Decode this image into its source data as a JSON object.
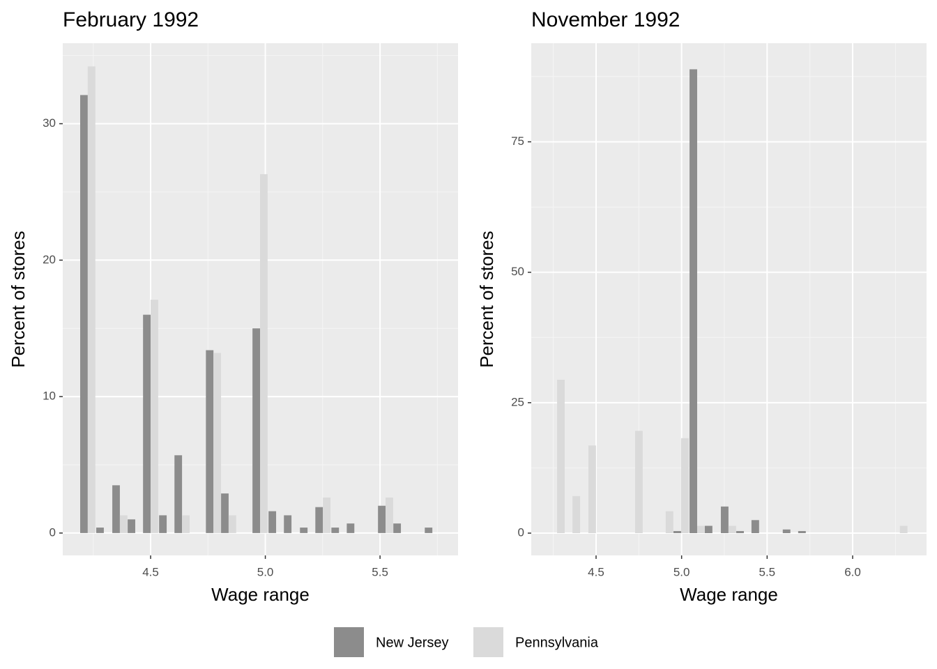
{
  "chart_data": [
    {
      "type": "bar",
      "title": "February 1992",
      "xlabel": "Wage range",
      "ylabel": "Percent of stores",
      "x": [
        4.226,
        4.296,
        4.366,
        4.433,
        4.5,
        4.57,
        4.637,
        4.774,
        4.84,
        4.977,
        5.047,
        5.114,
        5.184,
        5.251,
        5.321,
        5.388,
        5.524,
        5.591,
        5.728
      ],
      "series": [
        {
          "name": "New Jersey",
          "color": "#8c8c8c",
          "values": [
            32.1,
            0.4,
            3.5,
            1.0,
            16.0,
            1.3,
            5.7,
            13.4,
            2.9,
            15.0,
            1.6,
            1.3,
            0.4,
            1.9,
            0.4,
            0.7,
            2.0,
            0.7,
            0.4
          ]
        },
        {
          "name": "Pennsylvania",
          "color": "#dadada",
          "values": [
            34.2,
            0,
            1.3,
            0,
            17.1,
            0,
            1.3,
            13.2,
            1.3,
            26.3,
            0,
            0,
            0,
            2.6,
            0,
            0,
            2.6,
            0,
            0
          ]
        }
      ],
      "xlim": [
        4.117,
        5.84
      ],
      "xticks": [
        4.5,
        {
          "value": 5,
          "label": "5.0"
        },
        5.5
      ],
      "ylim": [
        -1.64,
        35.9
      ],
      "yticks": [
        0,
        10,
        20,
        30
      ],
      "grid": true
    },
    {
      "type": "bar",
      "title": "November 1992",
      "xlabel": "Wage range",
      "ylabel": "Percent of stores",
      "x": [
        4.272,
        4.362,
        4.455,
        4.728,
        4.907,
        4.997,
        5.091,
        5.18,
        5.274,
        5.364,
        5.453,
        5.636,
        5.726,
        6.276
      ],
      "series": [
        {
          "name": "New Jersey",
          "color": "#8c8c8c",
          "values": [
            0,
            0,
            0,
            0,
            0,
            0.4,
            88.9,
            1.4,
            5.1,
            0.4,
            2.5,
            0.7,
            0.4,
            0
          ]
        },
        {
          "name": "Pennsylvania",
          "color": "#dadada",
          "values": [
            29.4,
            7.1,
            16.8,
            19.6,
            4.2,
            18.2,
            1.4,
            0,
            1.4,
            0,
            0,
            0,
            0,
            1.4
          ]
        }
      ],
      "xlim": [
        4.121,
        6.432
      ],
      "xticks": [
        4.5,
        {
          "value": 5,
          "label": "5.0"
        },
        5.5,
        {
          "value": 6,
          "label": "6.0"
        }
      ],
      "ylim": [
        -4.27,
        93.9
      ],
      "yticks": [
        0,
        25,
        50,
        75
      ],
      "grid": true
    }
  ]
}
